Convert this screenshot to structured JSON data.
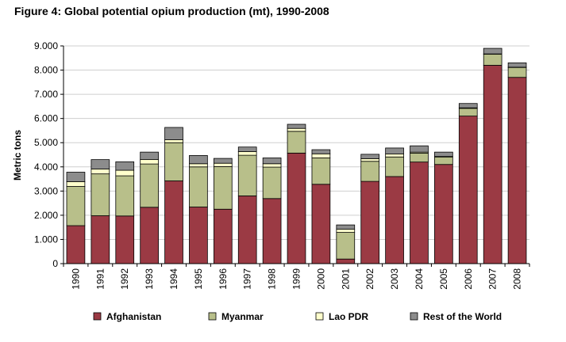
{
  "chart_data": {
    "type": "bar",
    "stacked": true,
    "title": "Figure 4: Global potential opium production (mt), 1990-2008",
    "xlabel": "",
    "ylabel": "Metric tons",
    "ylim": [
      0,
      9000
    ],
    "yticks": [
      0,
      1000,
      2000,
      3000,
      4000,
      5000,
      6000,
      7000,
      8000,
      9000
    ],
    "ytick_labels": [
      "0",
      "1.000",
      "2.000",
      "3.000",
      "4.000",
      "5.000",
      "6.000",
      "7.000",
      "8.000",
      "9.000"
    ],
    "grid": true,
    "legend_position": "bottom",
    "categories": [
      "1990",
      "1991",
      "1992",
      "1993",
      "1994",
      "1995",
      "1996",
      "1997",
      "1998",
      "1999",
      "2000",
      "2001",
      "2002",
      "2003",
      "2004",
      "2005",
      "2006",
      "2007",
      "2008"
    ],
    "series": [
      {
        "name": "Afghanistan",
        "color": "#9b3a44",
        "values": [
          1570,
          1980,
          1970,
          2330,
          3420,
          2340,
          2250,
          2800,
          2690,
          4570,
          3280,
          190,
          3400,
          3600,
          4200,
          4100,
          6100,
          8200,
          7700
        ]
      },
      {
        "name": "Myanmar",
        "color": "#b8bf8a",
        "values": [
          1620,
          1730,
          1660,
          1790,
          1580,
          1660,
          1760,
          1680,
          1300,
          900,
          1090,
          1100,
          830,
          810,
          370,
          310,
          320,
          460,
          410
        ]
      },
      {
        "name": "Lao PDR",
        "color": "#ffffcc",
        "values": [
          200,
          200,
          230,
          180,
          120,
          130,
          140,
          150,
          140,
          120,
          170,
          130,
          110,
          120,
          40,
          20,
          20,
          10,
          10
        ]
      },
      {
        "name": "Rest of the World",
        "color": "#8c8c8c",
        "values": [
          390,
          390,
          350,
          310,
          510,
          340,
          200,
          190,
          240,
          170,
          170,
          180,
          180,
          250,
          260,
          180,
          180,
          230,
          180
        ]
      }
    ]
  }
}
